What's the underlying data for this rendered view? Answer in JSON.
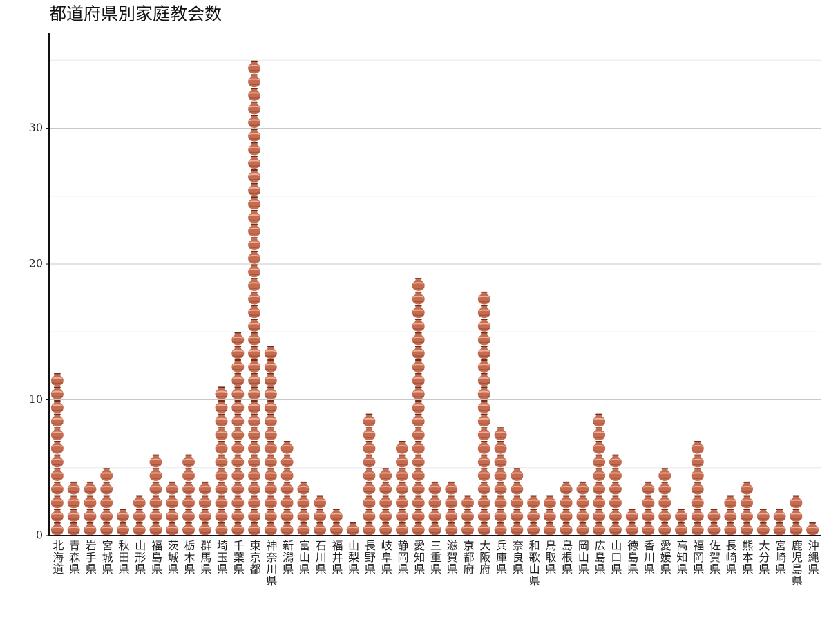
{
  "chart_data": {
    "type": "pictogram",
    "title": "都道府県別家庭教会数",
    "categories": [
      "北海道",
      "青森県",
      "岩手県",
      "宮城県",
      "秋田県",
      "山形県",
      "福島県",
      "茨城県",
      "栃木県",
      "群馬県",
      "埼玉県",
      "千葉県",
      "東京都",
      "神奈川県",
      "新潟県",
      "富山県",
      "石川県",
      "福井県",
      "山梨県",
      "長野県",
      "岐阜県",
      "静岡県",
      "愛知県",
      "三重県",
      "滋賀県",
      "京都府",
      "大阪府",
      "兵庫県",
      "奈良県",
      "和歌山県",
      "鳥取県",
      "島根県",
      "岡山県",
      "広島県",
      "山口県",
      "徳島県",
      "香川県",
      "愛媛県",
      "高知県",
      "福岡県",
      "佐賀県",
      "長崎県",
      "熊本県",
      "大分県",
      "宮崎県",
      "鹿児島県",
      "沖縄県"
    ],
    "values": [
      12,
      4,
      4,
      5,
      2,
      3,
      6,
      4,
      6,
      4,
      11,
      15,
      35,
      14,
      7,
      4,
      3,
      2,
      1,
      9,
      5,
      7,
      19,
      4,
      4,
      3,
      18,
      8,
      5,
      3,
      3,
      4,
      4,
      9,
      6,
      2,
      4,
      5,
      2,
      7,
      2,
      3,
      4,
      2,
      2,
      3,
      1
    ],
    "color": "#c56b4f",
    "ylim": [
      0,
      37
    ],
    "yticks": [
      0,
      10,
      20,
      30
    ],
    "minor_yticks": [
      5,
      15,
      25,
      35
    ],
    "grid": true
  }
}
